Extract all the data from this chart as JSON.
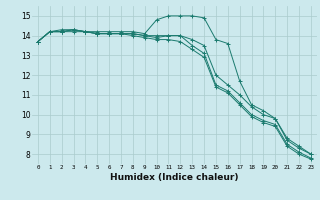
{
  "title": "",
  "xlabel": "Humidex (Indice chaleur)",
  "ylabel": "",
  "background_color": "#cce9ed",
  "grid_color": "#aacccc",
  "line_color": "#1a7a6e",
  "xlim": [
    -0.5,
    23.5
  ],
  "ylim": [
    7.5,
    15.5
  ],
  "yticks": [
    8,
    9,
    10,
    11,
    12,
    13,
    14,
    15
  ],
  "xticks": [
    0,
    1,
    2,
    3,
    4,
    5,
    6,
    7,
    8,
    9,
    10,
    11,
    12,
    13,
    14,
    15,
    16,
    17,
    18,
    19,
    20,
    21,
    22,
    23
  ],
  "series": [
    [
      13.7,
      14.2,
      14.2,
      14.3,
      14.2,
      14.1,
      14.1,
      14.1,
      14.1,
      14.0,
      13.9,
      14.0,
      14.0,
      13.5,
      13.1,
      11.5,
      11.2,
      10.6,
      10.0,
      9.7,
      9.5,
      8.5,
      8.1,
      7.8
    ],
    [
      13.7,
      14.2,
      14.2,
      14.2,
      14.2,
      14.1,
      14.1,
      14.1,
      14.0,
      13.9,
      13.8,
      13.8,
      13.7,
      13.3,
      12.9,
      11.4,
      11.1,
      10.5,
      9.9,
      9.6,
      9.4,
      8.4,
      8.0,
      7.75
    ],
    [
      13.7,
      14.2,
      14.2,
      14.3,
      14.2,
      14.1,
      14.1,
      14.1,
      14.1,
      14.0,
      14.0,
      14.0,
      14.0,
      13.8,
      13.5,
      12.0,
      11.5,
      11.0,
      10.4,
      10.0,
      9.8,
      8.7,
      8.3,
      8.0
    ],
    [
      13.7,
      14.2,
      14.3,
      14.3,
      14.2,
      14.2,
      14.2,
      14.2,
      14.2,
      14.1,
      14.8,
      15.0,
      15.0,
      15.0,
      14.9,
      13.8,
      13.6,
      11.7,
      10.5,
      10.2,
      9.8,
      8.8,
      8.4,
      8.0
    ]
  ]
}
